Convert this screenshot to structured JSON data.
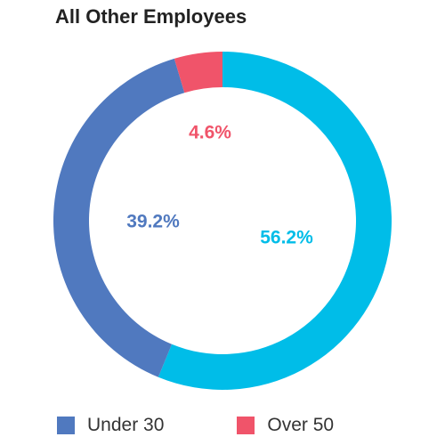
{
  "chart_data": {
    "type": "pie",
    "title": "All Other Employees",
    "slices": [
      {
        "label": "",
        "value": 56.2,
        "display": "56.2%",
        "color": "#00BDE8"
      },
      {
        "label": "Under 30",
        "value": 39.2,
        "display": "39.2%",
        "color": "#5079BF"
      },
      {
        "label": "Over 50",
        "value": 4.6,
        "display": "4.6%",
        "color": "#F0546A"
      }
    ],
    "legend": [
      {
        "label": "Under 30",
        "color": "#5079BF"
      },
      {
        "label": "Over 50",
        "color": "#F0546A"
      }
    ],
    "legend_position": "bottom",
    "donut": true
  }
}
